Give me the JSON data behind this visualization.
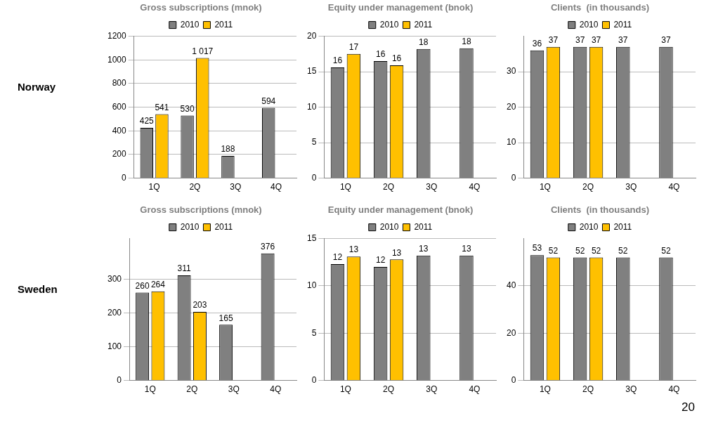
{
  "chart_data": [
    {
      "type": "bar",
      "title": "Gross subscriptions (mnok)",
      "categories": [
        "1Q",
        "2Q",
        "3Q",
        "4Q"
      ],
      "ylim": [
        0,
        1200
      ],
      "yticks": [
        0,
        200,
        400,
        600,
        800,
        1000,
        1200
      ],
      "grid": "y",
      "legend": "top",
      "annotations": [
        "Norway"
      ],
      "series": [
        {
          "name": "2010",
          "color": "#808080",
          "values": [
            425,
            530,
            188,
            594
          ],
          "value_labels": [
            "425",
            "530",
            "188",
            "594"
          ]
        },
        {
          "name": "2011",
          "color": "#ffc000",
          "values": [
            541,
            1017,
            null,
            null
          ],
          "value_labels": [
            "541",
            "1 017",
            null,
            null
          ]
        }
      ]
    },
    {
      "type": "bar",
      "title": "Equity under management (bnok)",
      "categories": [
        "1Q",
        "2Q",
        "3Q",
        "4Q"
      ],
      "ylim": [
        0,
        20
      ],
      "yticks": [
        0,
        5,
        10,
        15,
        20
      ],
      "grid": "y",
      "legend": "top",
      "series": [
        {
          "name": "2010",
          "color": "#808080",
          "values": [
            15.6,
            16.5,
            18.2,
            18.3
          ],
          "value_labels": [
            "16",
            "16",
            "18",
            "18"
          ]
        },
        {
          "name": "2011",
          "color": "#ffc000",
          "values": [
            17.5,
            15.9,
            null,
            null
          ],
          "value_labels": [
            "17",
            "16",
            null,
            null
          ]
        }
      ]
    },
    {
      "type": "bar",
      "title": "Clients  (in thousands)",
      "categories": [
        "1Q",
        "2Q",
        "3Q",
        "4Q"
      ],
      "ylim": [
        0,
        40
      ],
      "yticks": [
        0,
        10,
        20,
        30
      ],
      "grid": "y",
      "legend": "top",
      "series": [
        {
          "name": "2010",
          "color": "#808080",
          "values": [
            36,
            37,
            37,
            37
          ],
          "value_labels": [
            "36",
            "37",
            "37",
            "37"
          ]
        },
        {
          "name": "2011",
          "color": "#ffc000",
          "values": [
            37,
            37,
            null,
            null
          ],
          "value_labels": [
            "37",
            "37",
            null,
            null
          ]
        }
      ]
    },
    {
      "type": "bar",
      "title": "Gross subscriptions (mnok)",
      "categories": [
        "1Q",
        "2Q",
        "3Q",
        "4Q"
      ],
      "ylim": [
        0,
        420
      ],
      "yticks": [
        0,
        100,
        200,
        300
      ],
      "grid": "y",
      "legend": "top",
      "annotations": [
        "Sweden"
      ],
      "series": [
        {
          "name": "2010",
          "color": "#808080",
          "values": [
            260,
            311,
            165,
            376
          ],
          "value_labels": [
            "260",
            "311",
            "165",
            "376"
          ]
        },
        {
          "name": "2011",
          "color": "#ffc000",
          "values": [
            264,
            203,
            null,
            null
          ],
          "value_labels": [
            "264",
            "203",
            null,
            null
          ]
        }
      ]
    },
    {
      "type": "bar",
      "title": "Equity under management (bnok)",
      "categories": [
        "1Q",
        "2Q",
        "3Q",
        "4Q"
      ],
      "ylim": [
        0,
        15
      ],
      "yticks": [
        0,
        5,
        10,
        15
      ],
      "grid": "y",
      "legend": "top",
      "series": [
        {
          "name": "2010",
          "color": "#808080",
          "values": [
            12.3,
            12,
            13.2,
            13.2
          ],
          "value_labels": [
            "12",
            "12",
            "13",
            "13"
          ]
        },
        {
          "name": "2011",
          "color": "#ffc000",
          "values": [
            13.1,
            12.8,
            null,
            null
          ],
          "value_labels": [
            "13",
            "13",
            null,
            null
          ]
        }
      ]
    },
    {
      "type": "bar",
      "title": "Clients  (in thousands)",
      "categories": [
        "1Q",
        "2Q",
        "3Q",
        "4Q"
      ],
      "ylim": [
        0,
        60
      ],
      "yticks": [
        0,
        20,
        40
      ],
      "grid": "y",
      "legend": "top",
      "annotations": [
        "20"
      ],
      "series": [
        {
          "name": "2010",
          "color": "#808080",
          "values": [
            53,
            52,
            52,
            52
          ],
          "value_labels": [
            "53",
            "52",
            "52",
            "52"
          ]
        },
        {
          "name": "2011",
          "color": "#ffc000",
          "values": [
            52,
            52,
            null,
            null
          ],
          "value_labels": [
            "52",
            "52",
            null,
            null
          ]
        }
      ]
    }
  ]
}
